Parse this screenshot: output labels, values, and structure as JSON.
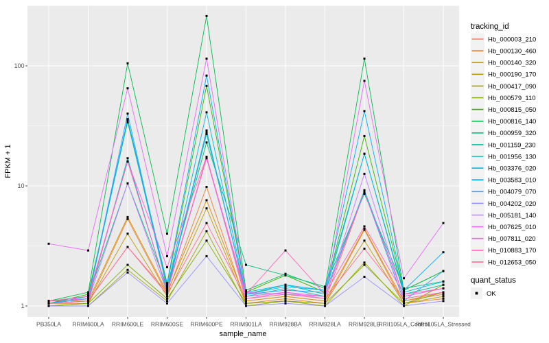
{
  "chart_data": {
    "type": "line",
    "title": "",
    "xlabel": "sample_name",
    "ylabel": "FPKM + 1",
    "y_scale": "log10",
    "y_ticks": [
      1,
      10,
      100
    ],
    "ylim_log10": [
      -0.091,
      2.503
    ],
    "grid": "on",
    "panel_bg": "#EBEBEB",
    "grid_color": "#FFFFFF",
    "tick_label_color": "#4D4D4D",
    "point_color": "#000000",
    "legend_position": "right",
    "categories": [
      "PB350LA",
      "RRIM600LA",
      "RRIM600LE",
      "RRIM600SE",
      "RRIM600PE",
      "RRIM901LA",
      "RRIM928BA",
      "RRIM928LA",
      "RRIM928LB",
      "RRII105LA_Control",
      "RRII105LA_Stressed"
    ],
    "series": [
      {
        "name": "Hb_000003_210",
        "color": "#F8766D",
        "values": [
          1.05,
          1.1,
          3.1,
          1.3,
          17.5,
          1.1,
          1.2,
          1.1,
          8.9,
          1.1,
          1.25
        ]
      },
      {
        "name": "Hb_000130_460",
        "color": "#EA8331",
        "values": [
          1.05,
          1.05,
          5.3,
          1.25,
          9.8,
          1.05,
          1.15,
          1.05,
          4.3,
          1.05,
          1.15
        ]
      },
      {
        "name": "Hb_000140_320",
        "color": "#D89000",
        "values": [
          1.1,
          1.1,
          5.5,
          1.3,
          7.6,
          1.1,
          1.2,
          1.1,
          4.4,
          1.1,
          1.3
        ]
      },
      {
        "name": "Hb_000190_170",
        "color": "#C09B00",
        "values": [
          1.0,
          1.05,
          4.0,
          1.2,
          6.5,
          1.05,
          1.1,
          1.05,
          3.5,
          1.05,
          1.2
        ]
      },
      {
        "name": "Hb_000417_090",
        "color": "#A3A500",
        "values": [
          1.0,
          1.0,
          2.0,
          1.1,
          4.2,
          1.0,
          1.1,
          1.0,
          2.3,
          1.0,
          1.5
        ]
      },
      {
        "name": "Hb_000579_110",
        "color": "#7CAE00",
        "values": [
          1.0,
          1.05,
          2.2,
          1.15,
          3.5,
          1.05,
          1.1,
          1.05,
          2.2,
          1.05,
          1.3
        ]
      },
      {
        "name": "Hb_000815_050",
        "color": "#39B600",
        "values": [
          1.05,
          1.25,
          34,
          1.5,
          68,
          1.3,
          1.8,
          1.3,
          26,
          1.35,
          1.95
        ]
      },
      {
        "name": "Hb_000816_140",
        "color": "#00BB4E",
        "values": [
          1.1,
          1.3,
          105,
          4.0,
          260,
          1.35,
          1.85,
          1.4,
          115,
          1.35,
          1.95
        ]
      },
      {
        "name": "Hb_000959_320",
        "color": "#00BF7D",
        "values": [
          1.1,
          1.2,
          10.5,
          1.45,
          23,
          2.2,
          1.8,
          1.45,
          8.6,
          1.4,
          1.6
        ]
      },
      {
        "name": "Hb_001159_230",
        "color": "#00C1A3",
        "values": [
          1.05,
          1.15,
          16,
          1.35,
          27,
          1.25,
          1.5,
          1.25,
          18.5,
          1.25,
          1.5
        ]
      },
      {
        "name": "Hb_001956_130",
        "color": "#00BFC4",
        "values": [
          1.05,
          1.1,
          17,
          1.3,
          29,
          1.2,
          1.4,
          1.2,
          9.2,
          1.2,
          1.4
        ]
      },
      {
        "name": "Hb_003376_020",
        "color": "#00BAE0",
        "values": [
          1.1,
          1.15,
          35,
          1.4,
          41,
          1.25,
          1.45,
          1.35,
          18.5,
          1.3,
          1.6
        ]
      },
      {
        "name": "Hb_003583_010",
        "color": "#00B0F6",
        "values": [
          1.05,
          1.2,
          36,
          1.55,
          83,
          1.3,
          1.5,
          1.35,
          42,
          1.35,
          2.8
        ]
      },
      {
        "name": "Hb_004079_070",
        "color": "#35A2FF",
        "values": [
          1.05,
          1.15,
          40,
          1.4,
          28,
          1.25,
          1.35,
          1.3,
          8.9,
          1.1,
          1.95
        ]
      },
      {
        "name": "Hb_004202_020",
        "color": "#9590FF",
        "values": [
          1.0,
          1.0,
          1.9,
          1.05,
          2.6,
          1.0,
          1.05,
          1.0,
          1.75,
          1.0,
          1.1
        ]
      },
      {
        "name": "Hb_005181_140",
        "color": "#C77CFF",
        "values": [
          1.05,
          1.1,
          10.5,
          1.3,
          17,
          1.15,
          1.3,
          1.15,
          12.6,
          1.15,
          1.3
        ]
      },
      {
        "name": "Hb_007625_010",
        "color": "#E76BF3",
        "values": [
          3.3,
          2.9,
          65,
          2.6,
          115,
          1.3,
          1.25,
          1.2,
          75,
          1.7,
          4.9
        ]
      },
      {
        "name": "Hb_007811_020",
        "color": "#FA62DB",
        "values": [
          1.1,
          1.15,
          16,
          2.1,
          17.5,
          1.2,
          1.3,
          1.2,
          8.9,
          1.2,
          1.4
        ]
      },
      {
        "name": "Hb_010883_170",
        "color": "#FF62BC",
        "values": [
          1.1,
          1.2,
          16,
          1.35,
          17,
          1.25,
          2.9,
          1.25,
          4.6,
          1.25,
          1.4
        ]
      },
      {
        "name": "Hb_012653_050",
        "color": "#FF6A98",
        "values": [
          1.05,
          1.1,
          3.1,
          1.25,
          4.9,
          1.15,
          1.25,
          1.15,
          3.0,
          1.15,
          1.3
        ]
      }
    ],
    "legend": {
      "title": "tracking_id"
    },
    "legend2": {
      "title": "quant_status",
      "item_label": "OK"
    }
  }
}
